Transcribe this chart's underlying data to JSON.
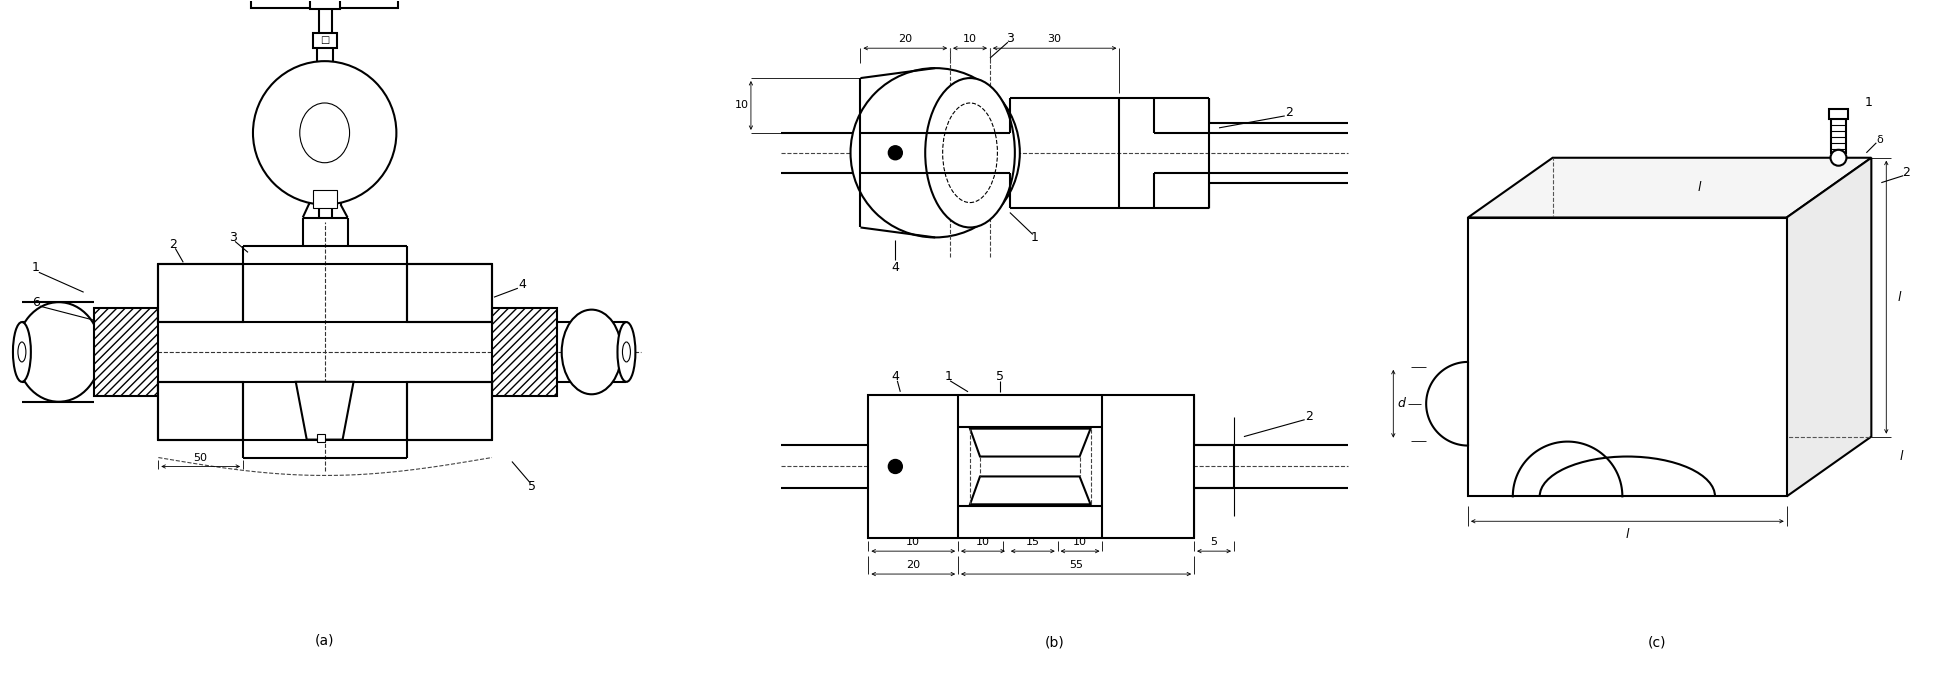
{
  "bg_color": "#ffffff",
  "line_color": "#000000",
  "fig_width": 19.56,
  "fig_height": 6.82,
  "label_a": "(a)",
  "label_b": "(b)",
  "label_c": "(c)"
}
